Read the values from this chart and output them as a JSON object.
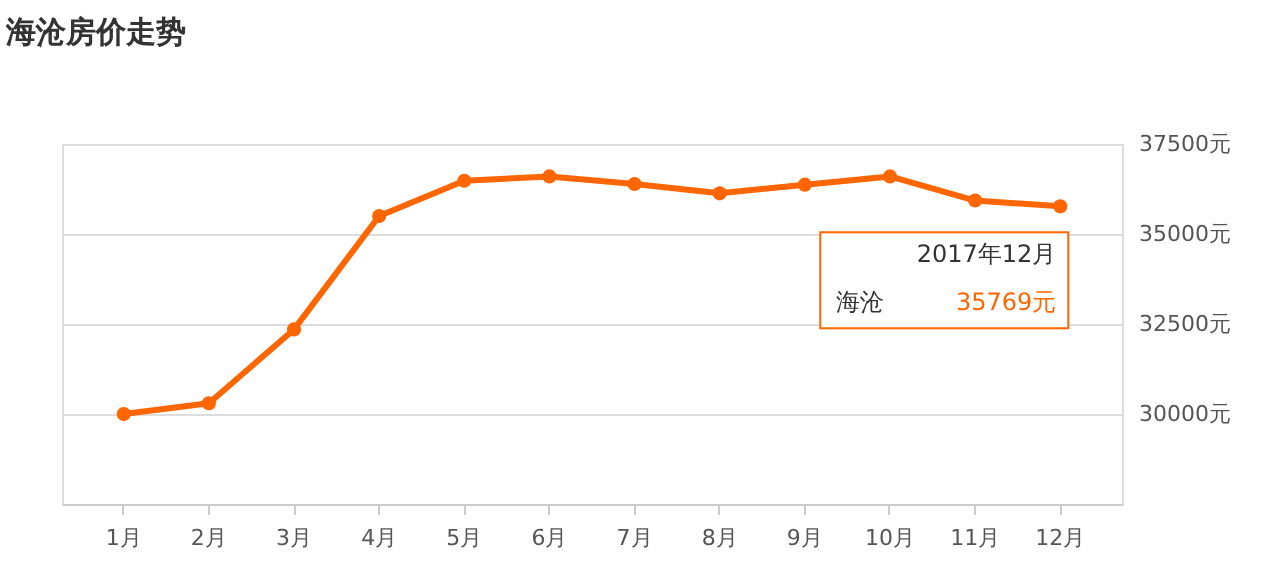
{
  "chart_data": {
    "type": "line",
    "title": "海沧房价走势",
    "categories": [
      "1月",
      "2月",
      "3月",
      "4月",
      "5月",
      "6月",
      "7月",
      "8月",
      "9月",
      "10月",
      "11月",
      "12月"
    ],
    "series": [
      {
        "name": "海沧",
        "color": "#ff6600",
        "values": [
          30000,
          30300,
          32350,
          35500,
          36480,
          36600,
          36390,
          36130,
          36370,
          36600,
          35930,
          35769
        ],
        "value_labels": [
          null,
          null,
          null,
          null,
          null,
          null,
          null,
          null,
          null,
          null,
          null,
          "35769元"
        ]
      }
    ],
    "ylim": [
      27500,
      37500
    ],
    "yticks": [
      {
        "value": 30000,
        "label": "30000元"
      },
      {
        "value": 32500,
        "label": "32500元"
      },
      {
        "value": 35000,
        "label": "35000元"
      },
      {
        "value": 37500,
        "label": "37500元"
      }
    ],
    "annotations": [
      {
        "text": "2017年12月",
        "x": "12月",
        "y": 35769
      }
    ],
    "grid": "y",
    "marker": "circle",
    "line_style": "solid"
  }
}
